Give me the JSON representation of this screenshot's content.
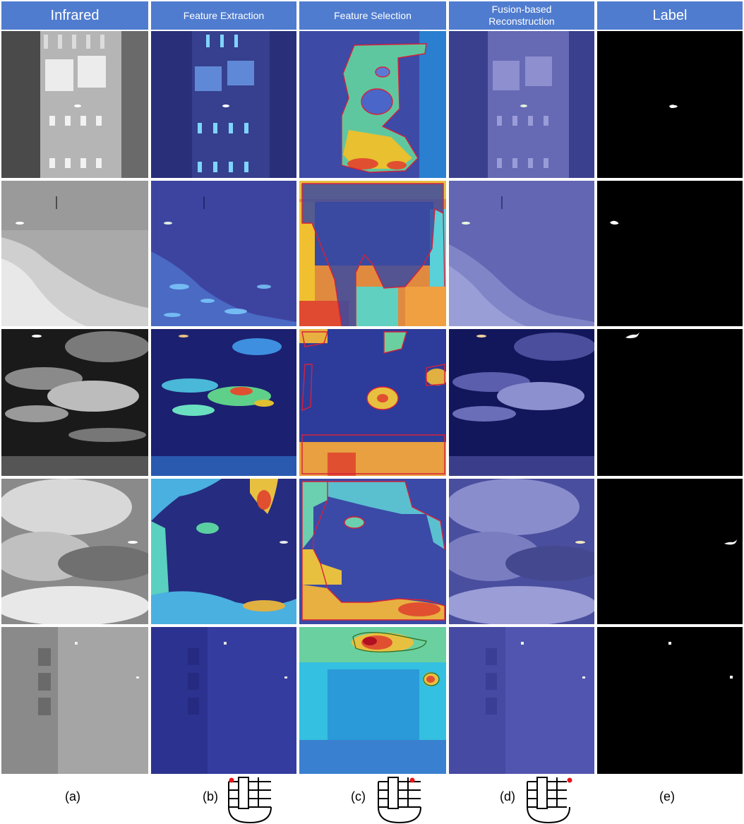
{
  "headers": [
    "Infrared",
    "Feature Extraction",
    "Feature Selection",
    "Fusion-based\nReconstruction",
    "Label"
  ],
  "captions": [
    "(a)",
    "(b)",
    "(c)",
    "(d)",
    "(e)"
  ],
  "colors": {
    "header_bg": "#4f7ccf",
    "contour": "#d8203a",
    "target_marker": "#e8141b"
  }
}
